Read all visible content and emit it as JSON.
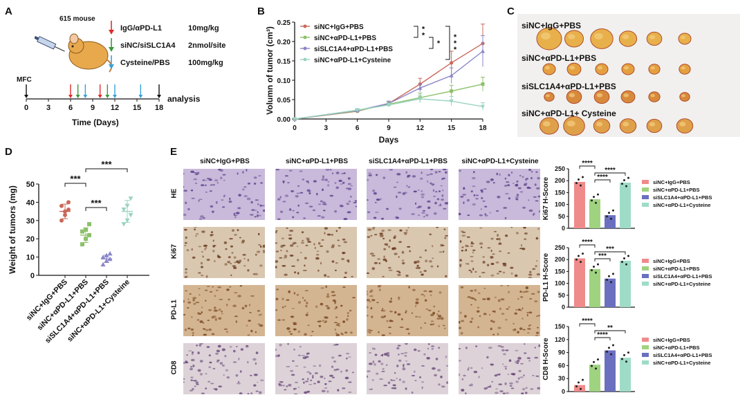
{
  "panels": {
    "A": "A",
    "B": "B",
    "C": "C",
    "D": "D",
    "E": "E"
  },
  "panel_a": {
    "mouse_label": "615 mouse",
    "treatments": [
      {
        "name": "IgG/αPD-L1",
        "dose": "10mg/kg",
        "color": "#e02a2a"
      },
      {
        "name": "siNC/siSLC1A4",
        "dose": "2nmol/site",
        "color": "#3a9a3a"
      },
      {
        "name": "Cysteine/PBS",
        "dose": "100mg/kg",
        "color": "#3aa0d8"
      }
    ],
    "mfc_label": "MFC",
    "analysis_label": "analysis",
    "ticks": [
      "0",
      "3",
      "6",
      "9",
      "12",
      "15",
      "18"
    ],
    "axis_title": "Time  (Days)"
  },
  "chart_data": [
    {
      "id": "B",
      "type": "line",
      "xlabel": "Days",
      "ylabel": "Volumn of tumor (cm³)",
      "x": [
        0,
        3,
        6,
        9,
        12,
        15,
        18
      ],
      "ylim": [
        0,
        0.25
      ],
      "yticks": [
        "0.00",
        "0.05",
        "0.10",
        "0.15",
        "0.20",
        "0.25"
      ],
      "series": [
        {
          "name": "siNC+IgG+PBS",
          "color": "#c9685a",
          "marker": "circle",
          "values": [
            0,
            null,
            0.02,
            0.04,
            0.09,
            0.145,
            0.195
          ],
          "err": [
            0,
            null,
            0.004,
            0.006,
            0.015,
            0.03,
            0.05
          ]
        },
        {
          "name": "siNC+αPD-L1+PBS",
          "color": "#8cc06a",
          "marker": "square",
          "values": [
            0,
            null,
            0.021,
            0.038,
            0.055,
            0.072,
            0.09
          ],
          "err": [
            0,
            null,
            0.004,
            0.006,
            0.012,
            0.015,
            0.018
          ]
        },
        {
          "name": "siSLC1A4+αPD-L1+PBS",
          "color": "#8a86c8",
          "marker": "triangle",
          "values": [
            0,
            null,
            0.022,
            0.04,
            0.08,
            0.112,
            0.175
          ],
          "err": [
            0,
            null,
            0.004,
            0.006,
            0.01,
            0.02,
            0.04
          ]
        },
        {
          "name": "siNC+αPD-L1+Cysteine",
          "color": "#9bd4c0",
          "marker": "tri-down",
          "values": [
            0,
            null,
            0.023,
            0.036,
            0.052,
            0.046,
            0.032
          ],
          "err": [
            0,
            null,
            0.004,
            0.005,
            0.01,
            0.012,
            0.01
          ]
        }
      ],
      "significance": [
        "**",
        "*",
        "***"
      ]
    },
    {
      "id": "D",
      "type": "scatter",
      "ylabel": "Weight of tumors (mg)",
      "ylim": [
        0,
        50
      ],
      "yticks": [
        "0",
        "10",
        "20",
        "30",
        "40",
        "50"
      ],
      "categories": [
        "siNC+IgG+PBS",
        "siNC+αPD-L1+PBS",
        "siSLC1A4+αPD-L1+PBS",
        "siNC+αPD-L1+Cysteine"
      ],
      "colors": [
        "#c9685a",
        "#8cc06a",
        "#8a86c8",
        "#9bd4c0"
      ],
      "means": [
        35,
        22,
        9,
        35
      ],
      "sd": [
        4,
        4,
        2,
        6
      ],
      "points": [
        [
          30,
          33,
          36,
          38,
          35,
          40
        ],
        [
          17,
          20,
          22,
          24,
          25,
          28
        ],
        [
          6,
          8,
          9,
          10,
          11,
          12
        ],
        [
          28,
          30,
          33,
          36,
          38,
          42
        ]
      ],
      "significance": [
        "***",
        "***",
        "***"
      ]
    },
    {
      "id": "E-Ki67",
      "type": "bar",
      "ylabel": "Ki67 H-Score",
      "ylim": [
        0,
        250
      ],
      "yticks": [
        "0",
        "50",
        "100",
        "150",
        "200",
        "250"
      ],
      "categories": [
        "siNC+IgG+PBS",
        "siNC+αPD-L1+PBS",
        "siSLC1A4+αPD-L1+PBS",
        "siNC+αPD-L1+Cysteine"
      ],
      "values": [
        195,
        122,
        55,
        192
      ],
      "colors": [
        "#f08b8b",
        "#9fd37f",
        "#6b6fc0",
        "#9fdcc7"
      ],
      "significance": [
        "****",
        "****",
        "****"
      ]
    },
    {
      "id": "E-PDL1",
      "type": "bar",
      "ylabel": "PD-L1 H-Score",
      "ylim": [
        0,
        250
      ],
      "yticks": [
        "0",
        "50",
        "100",
        "150",
        "200",
        "250"
      ],
      "categories": [
        "siNC+IgG+PBS",
        "siNC+αPD-L1+PBS",
        "siSLC1A4+αPD-L1+PBS",
        "siNC+αPD-L1+Cysteine"
      ],
      "values": [
        205,
        160,
        120,
        195
      ],
      "colors": [
        "#f08b8b",
        "#9fd37f",
        "#6b6fc0",
        "#9fdcc7"
      ],
      "significance": [
        "****",
        "***",
        "***"
      ]
    },
    {
      "id": "E-CD8",
      "type": "bar",
      "ylabel": "CD8 H-Score",
      "ylim": [
        0,
        150
      ],
      "yticks": [
        "0",
        "30",
        "60",
        "90",
        "120",
        "150"
      ],
      "categories": [
        "siNC+IgG+PBS",
        "siNC+αPD-L1+PBS",
        "siSLC1A4+αPD-L1+PBS",
        "siNC+αPD-L1+Cysteine"
      ],
      "values": [
        15,
        62,
        95,
        78
      ],
      "colors": [
        "#f08b8b",
        "#9fd37f",
        "#6b6fc0",
        "#9fdcc7"
      ],
      "significance": [
        "****",
        "****",
        "**"
      ]
    }
  ],
  "panel_c": {
    "groups": [
      "siNC+IgG+PBS",
      "siNC+αPD-L1+PBS",
      "siSLC1A4+αPD-L1+PBS",
      "siNC+αPD-L1+ Cysteine"
    ]
  },
  "panel_e": {
    "columns": [
      "siNC+IgG+PBS",
      "siNC+αPD-L1+PBS",
      "siSLC1A4+αPD-L1+PBS",
      "siNC+αPD-L1+Cysteine"
    ],
    "rows": [
      "HE",
      "Ki67",
      "PD-L1",
      "CD8"
    ]
  }
}
